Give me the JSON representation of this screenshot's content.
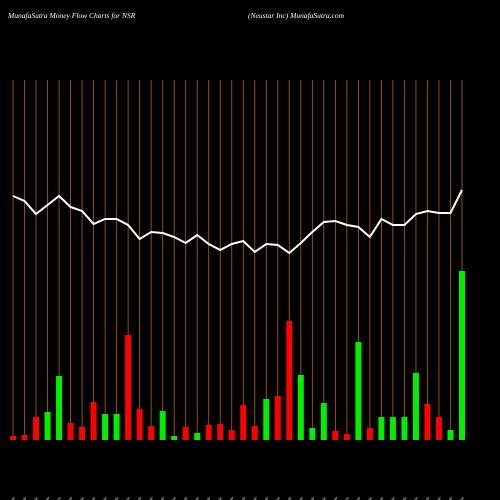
{
  "chart_data": {
    "type": "bar",
    "title": "MunafaSutra  Money Flow  Charts for NSR",
    "subtitle": "(Neustar Inc) MunafaSutra.com",
    "categories": [
      "7.96 1289.06%",
      "8.00 0.38%",
      "7.96 1.76%",
      "7.94 1.72%",
      "7.93 7.65%",
      "7.92 1.23%",
      "7.94 1.91%",
      "7.95 1.58%",
      "7.94 0.86%",
      "7.95 0.89%",
      "7.93 12.15%",
      "7.97 1.27%",
      "8.00 1.27%",
      "8.00 0.63%",
      "7.99 1.77%",
      "8.00 0.84%",
      "8.00 0.33%",
      "8.00 0.49%",
      "8.00 0.91%",
      "8.00 1.23%",
      "8.00 1.45%",
      "8.00 1.17%",
      "8.00 1.28%",
      "8.00 1.01%",
      "8.00 1.05%",
      "8.00 1.71%",
      "8.00 1.75%",
      "7.98 1.76%",
      "7.97 1.03%",
      "7.98 0.84%",
      "7.96 2.73%",
      "7.95 1.18%",
      "7.98 0.90%",
      "7.97 0.95%",
      "7.96 1.02%",
      "7.95 1.85%",
      "7.96 1.61%",
      "7.94 0.93%",
      "7.93 1.20%",
      "7.94 2.09%"
    ],
    "values": [
      4,
      5,
      23,
      28,
      64,
      17,
      13,
      38,
      26,
      26,
      105,
      31,
      14,
      29,
      4,
      13,
      7,
      15,
      16,
      10,
      35,
      14,
      41,
      44,
      119,
      65,
      12,
      37,
      9,
      6,
      98,
      12,
      23,
      23,
      23,
      67,
      36,
      23,
      10,
      169
    ],
    "bar_colors": [
      "#ff0000",
      "#ff0000",
      "#ff0000",
      "#00ee00",
      "#00ee00",
      "#ff0000",
      "#ff0000",
      "#ff0000",
      "#00ee00",
      "#00ee00",
      "#ff0000",
      "#ff0000",
      "#ff0000",
      "#00ee00",
      "#00ee00",
      "#ff0000",
      "#00ee00",
      "#ff0000",
      "#ff0000",
      "#ff0000",
      "#ff0000",
      "#ff0000",
      "#00ee00",
      "#ff0000",
      "#ff0000",
      "#00ee00",
      "#00ee00",
      "#00ee00",
      "#ff0000",
      "#ff0000",
      "#00ee00",
      "#ff0000",
      "#00ee00",
      "#00ee00",
      "#00ee00",
      "#00ee00",
      "#ff0000",
      "#ff0000",
      "#00ee00",
      "#00ee00"
    ],
    "line": {
      "color": "#ffffff",
      "values": [
        244,
        239,
        226,
        235,
        244,
        233,
        229,
        216,
        221,
        221,
        215,
        201,
        208,
        207,
        203,
        197,
        205,
        196,
        190,
        196,
        199,
        188,
        196,
        195,
        187,
        197,
        208,
        218,
        219,
        215,
        213,
        203,
        221,
        215,
        215,
        226,
        229,
        227,
        227,
        250
      ]
    },
    "ylim": [
      0,
      360
    ],
    "grid": true,
    "grid_color": "#b8600a",
    "background": "#000000"
  }
}
